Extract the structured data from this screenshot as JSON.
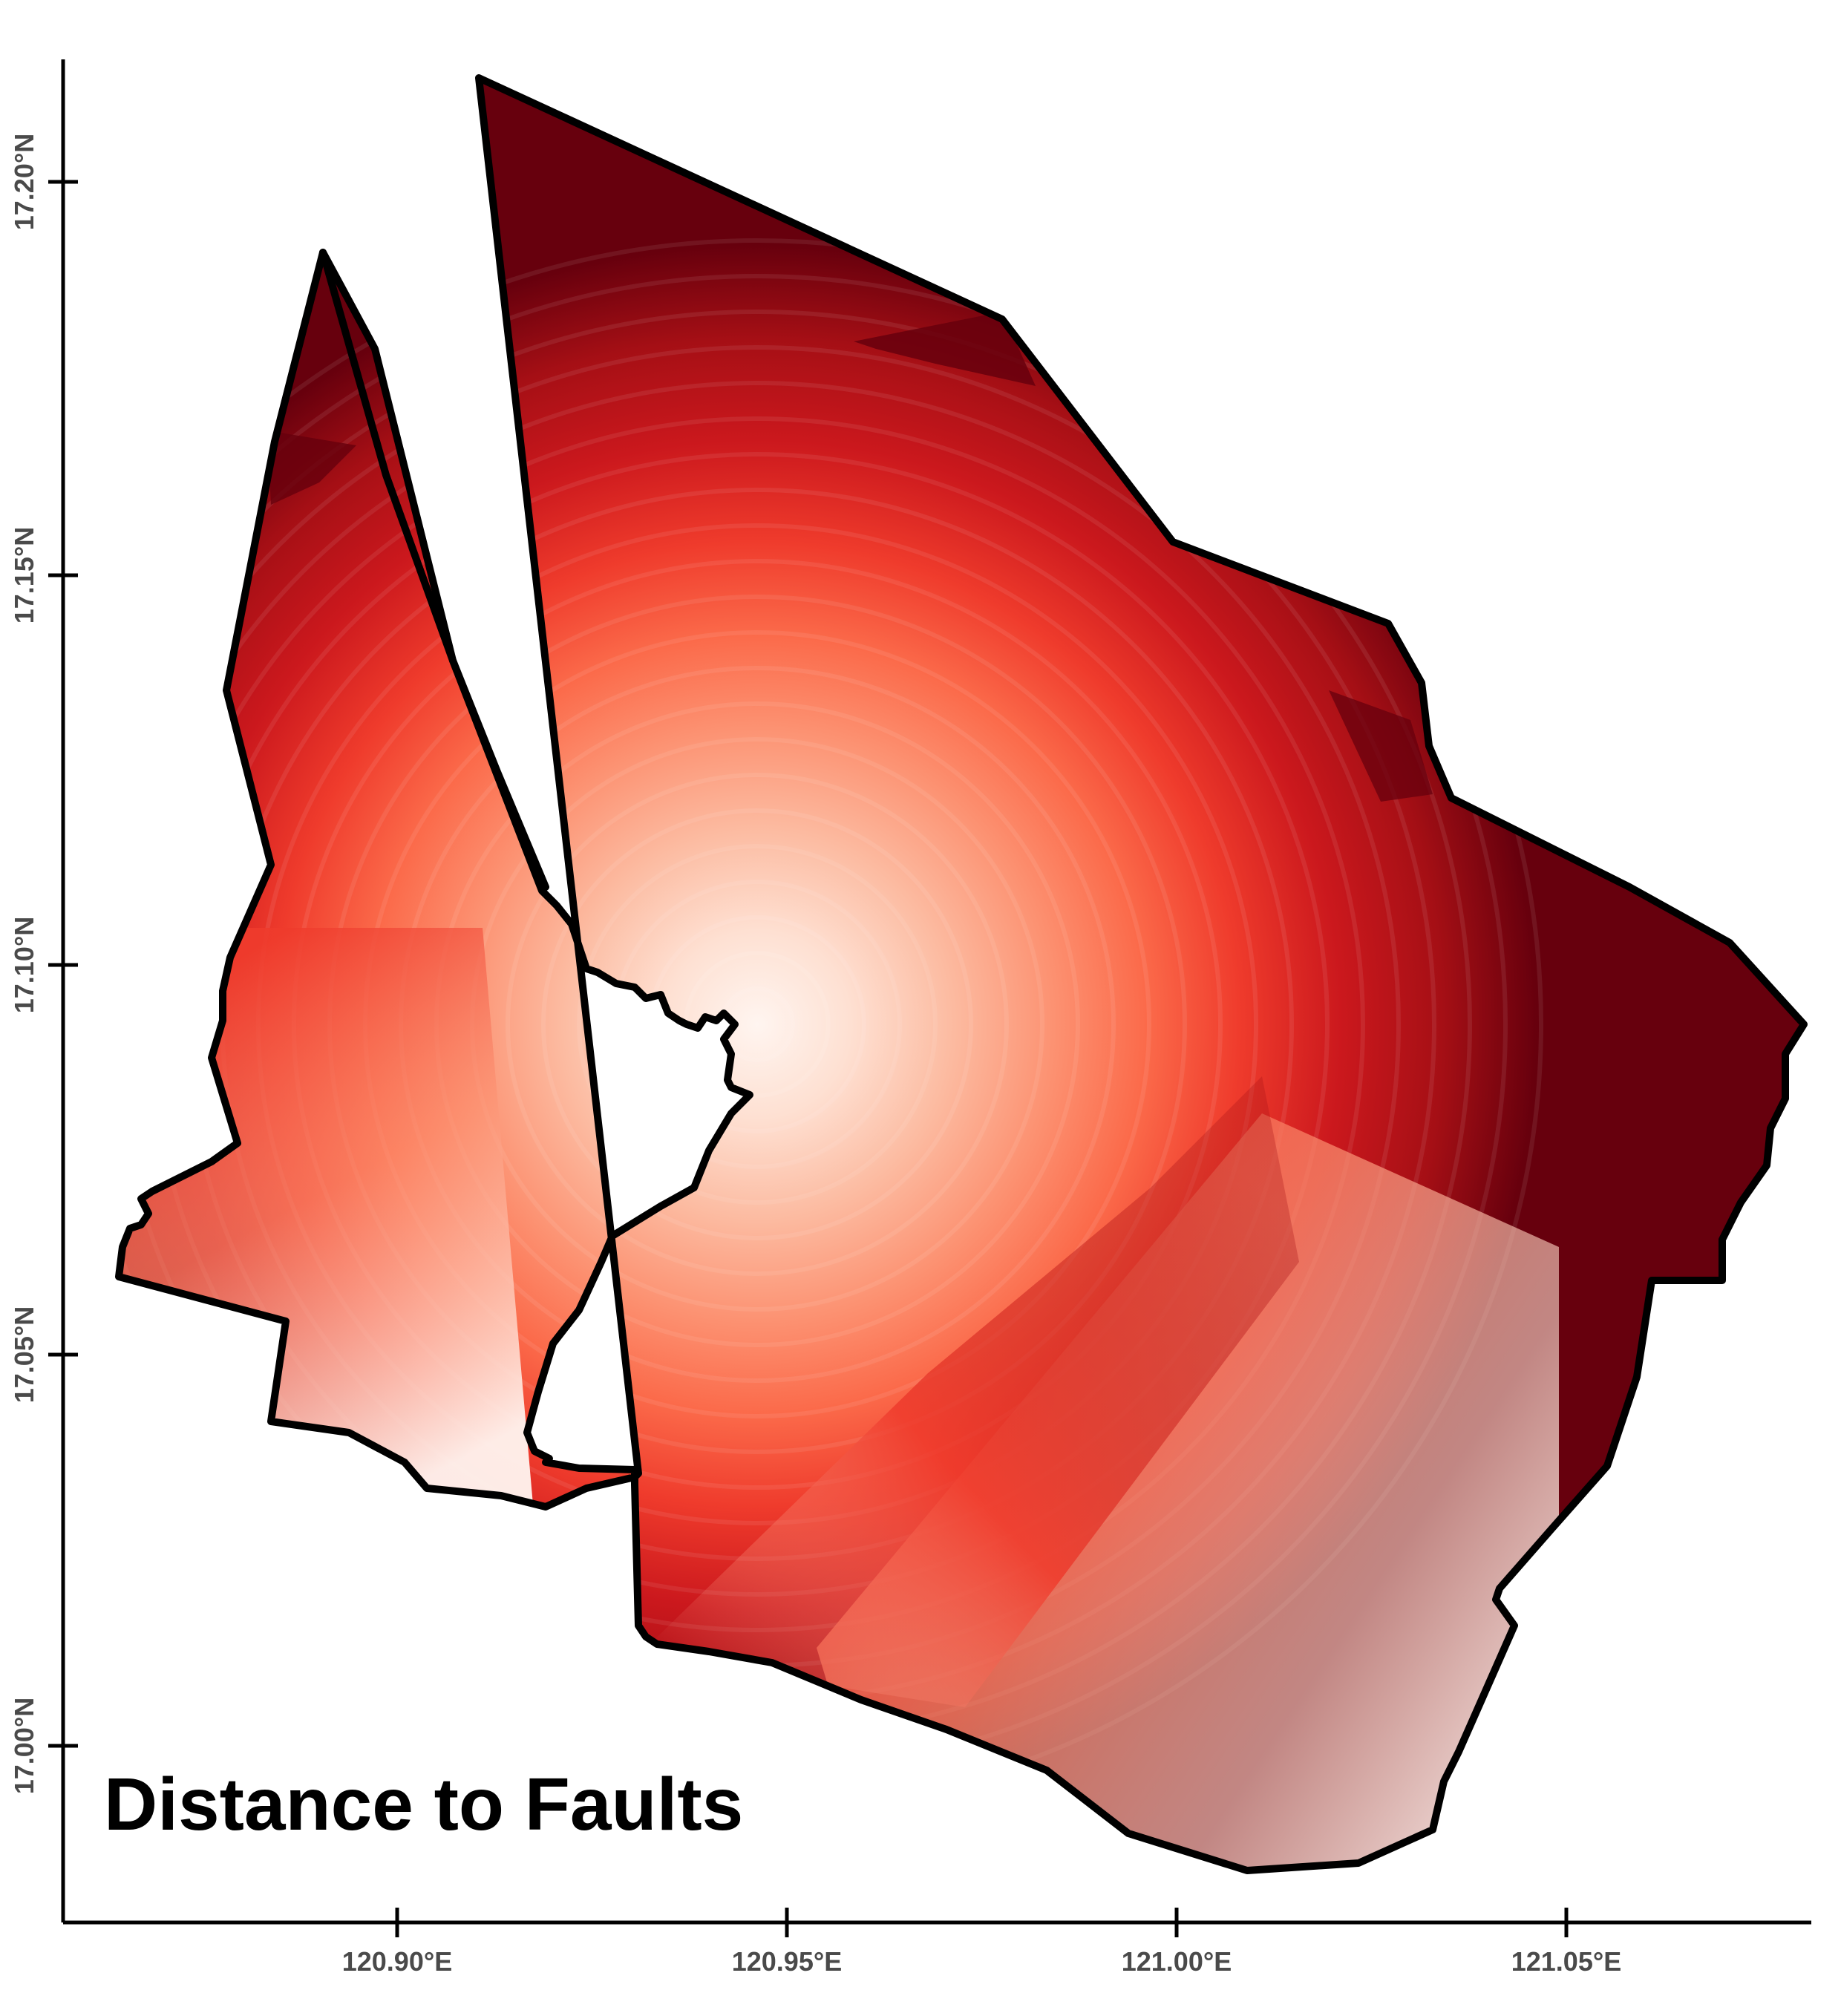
{
  "map": {
    "title": "Distance to Faults",
    "colors": {
      "near": "#67000d",
      "mid_dark": "#cb181d",
      "mid": "#ef3b2c",
      "mid_light": "#fc9272",
      "light": "#fcd5c4",
      "far": "#fff5f0",
      "outline": "#000000",
      "tick_label": "#4a4a4a"
    },
    "x_axis": {
      "ticks": [
        "120.90°E",
        "120.95°E",
        "121.00°E",
        "121.05°E"
      ]
    },
    "y_axis": {
      "ticks": [
        "17.20°N",
        "17.15°N",
        "17.10°N",
        "17.05°N",
        "17.00°N"
      ]
    },
    "features": {
      "outline_icon": "municipal-boundary-outline",
      "internal_boundary_icon": "internal-boundary-line"
    }
  }
}
